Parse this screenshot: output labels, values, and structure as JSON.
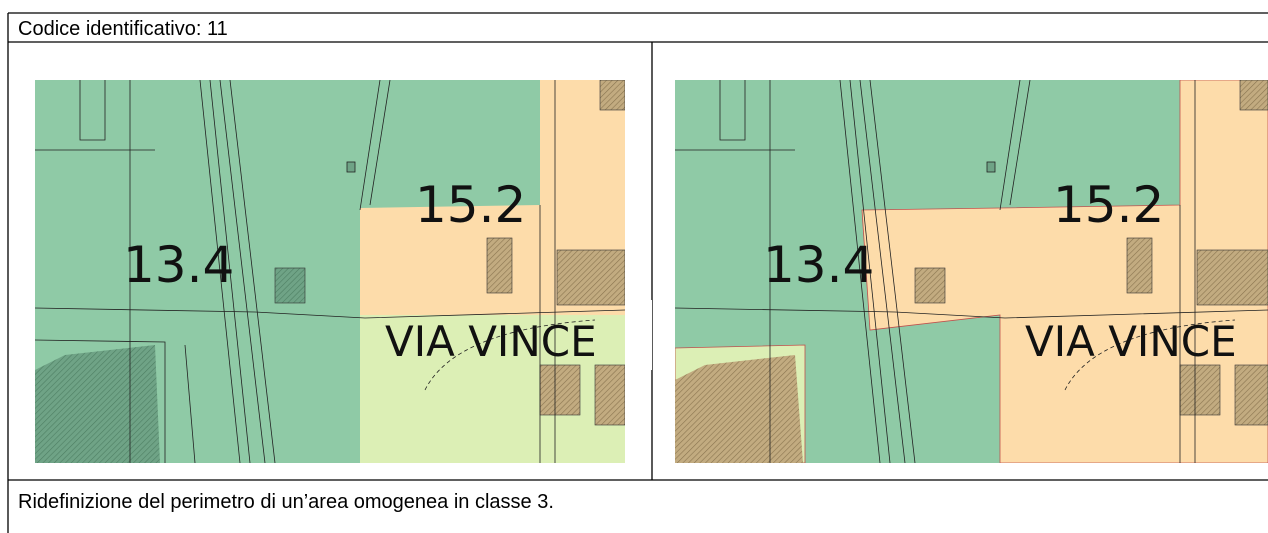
{
  "header": {
    "title": "Codice identificativo: 11"
  },
  "maps": [
    {
      "labels": [
        "13.4",
        "15.2",
        "VIA VINCE"
      ]
    },
    {
      "labels": [
        "13.4",
        "15.2",
        "VIA VINCE"
      ]
    }
  ],
  "footer": {
    "text": "Ridefinizione del perimetro di un’area omogenea in classe 3."
  }
}
